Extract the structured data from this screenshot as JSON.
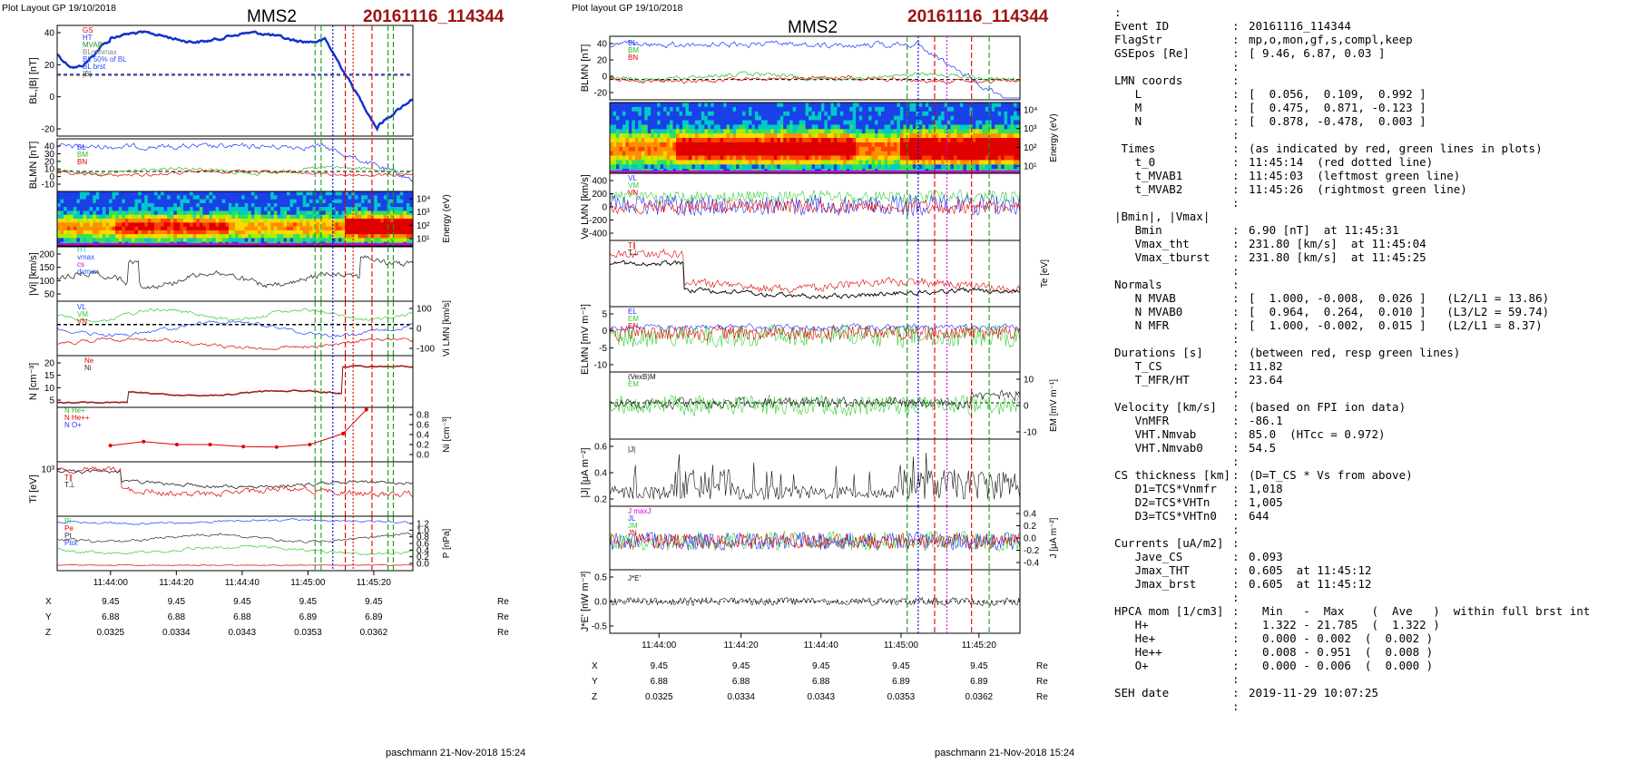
{
  "left_page": {
    "header": "Plot Layout GP 19/10/2018",
    "spacecraft": "MMS2",
    "event_id": "20161116_114344",
    "footer": "paschmann 21-Nov-2018 15:24",
    "time_labels": [
      "11:44:00",
      "11:44:20",
      "11:44:40",
      "11:45:00",
      "11:45:20"
    ],
    "orbit": {
      "x_label": "X",
      "y_label": "Y",
      "z_label": "Z",
      "unit": "Re",
      "x": [
        "9.45",
        "9.45",
        "9.45",
        "9.45",
        "9.45"
      ],
      "y": [
        "6.88",
        "6.88",
        "6.88",
        "6.89",
        "6.89"
      ],
      "z": [
        "0.0325",
        "0.0334",
        "0.0343",
        "0.0353",
        "0.0362"
      ]
    },
    "panels": [
      {
        "id": "bl",
        "ylabel": "BL,|B| [nT]",
        "ticks": [
          "40",
          "20",
          "0",
          "-20"
        ],
        "legend": [
          "GS",
          "HT",
          "MVAB",
          "BLminmax",
          "BL 50% of BL",
          "BL brst",
          "|B|"
        ]
      },
      {
        "id": "blmn",
        "ylabel": "BLMN [nT]",
        "ticks": [
          "40",
          "30",
          "20",
          "10",
          "0",
          "-10"
        ],
        "legend": [
          "BL",
          "BM",
          "BN"
        ]
      },
      {
        "id": "spec",
        "ylabel_right": "Energy (eV)",
        "ticks": [
          "10⁴",
          "10³",
          "10²",
          "10¹"
        ]
      },
      {
        "id": "vi",
        "ylabel": "|Vi| [km/s]",
        "ticks": [
          "200",
          "150",
          "100",
          "50"
        ],
        "legend": [
          "HT",
          "vmax",
          "cs",
          "dvmax"
        ]
      },
      {
        "id": "vilmn",
        "ylabel_right": "Vi LMN [km/s]",
        "ticks": [
          "100",
          "0",
          "-100"
        ],
        "legend": [
          "VL",
          "VM",
          "VN"
        ]
      },
      {
        "id": "n",
        "ylabel": "N [cm⁻³]",
        "ticks": [
          "20",
          "15",
          "10",
          "5"
        ],
        "legend": [
          "Ne",
          "Ni"
        ]
      },
      {
        "id": "ni",
        "ylabel_right": "Ni [cm⁻³]",
        "ticks": [
          "0.8",
          "0.6",
          "0.4",
          "0.2",
          "0.0"
        ],
        "legend": [
          "N He+",
          "N He++",
          "N O+"
        ]
      },
      {
        "id": "ti",
        "ylabel": "Ti [eV]",
        "ticks": [
          "10³"
        ],
        "legend": [
          "T∥",
          "T⊥"
        ]
      },
      {
        "id": "p",
        "ylabel_right": "P [nPa]",
        "ticks": [
          "1.2",
          "1.0",
          "0.8",
          "0.6",
          "0.4",
          "0.2",
          "0.0"
        ],
        "legend": [
          "Pi",
          "Pe",
          "Pt",
          "Ptot"
        ]
      }
    ]
  },
  "right_page": {
    "header": "Plot layout GP 19/10/2018",
    "spacecraft": "MMS2",
    "event_id": "20161116_114344",
    "footer": "paschmann 21-Nov-2018 15:24",
    "time_labels": [
      "11:44:00",
      "11:44:20",
      "11:44:40",
      "11:45:00",
      "11:45:20"
    ],
    "orbit": {
      "x_label": "X",
      "y_label": "Y",
      "z_label": "Z",
      "unit": "Re",
      "x": [
        "9.45",
        "9.45",
        "9.45",
        "9.45",
        "9.45"
      ],
      "y": [
        "6.88",
        "6.88",
        "6.88",
        "6.89",
        "6.89"
      ],
      "z": [
        "0.0325",
        "0.0334",
        "0.0343",
        "0.0353",
        "0.0362"
      ]
    },
    "panels": [
      {
        "id": "blmn",
        "ylabel": "BLMN [nT]",
        "ticks": [
          "40",
          "20",
          "0",
          "-20"
        ],
        "legend": [
          "BL",
          "BM",
          "BN"
        ]
      },
      {
        "id": "spec",
        "ylabel_right": "Energy (eV)",
        "ticks": [
          "10⁴",
          "10³",
          "10²",
          "10¹"
        ]
      },
      {
        "id": "ve",
        "ylabel": "Ve LMN [km/s]",
        "ticks": [
          "400",
          "200",
          "0",
          "-200",
          "-400"
        ],
        "legend": [
          "VL",
          "VM",
          "VN"
        ]
      },
      {
        "id": "te",
        "ylabel_right": "Te [eV]",
        "ticks": [],
        "legend": [
          "T∥",
          "T⊥"
        ]
      },
      {
        "id": "e",
        "ylabel": "ELMN [mV m⁻¹]",
        "ticks": [
          "5",
          "0",
          "-5",
          "-10"
        ],
        "legend": [
          "EL",
          "EM",
          "EN"
        ]
      },
      {
        "id": "em",
        "ylabel_right": "EM [mV m⁻¹]",
        "ticks": [
          "10",
          "0",
          "-10"
        ],
        "legend": [
          "(VexB)M",
          "EM"
        ]
      },
      {
        "id": "j",
        "ylabel": "|J| [μA m⁻²]",
        "ticks": [
          "0.6",
          "0.4",
          "0.2"
        ],
        "legend": [
          "|J|"
        ]
      },
      {
        "id": "jlmn",
        "ylabel_right": "J [μA m⁻²]",
        "ticks": [
          "0.4",
          "0.2",
          "0.0",
          "-0.2",
          "-0.4"
        ],
        "legend": [
          "J maxJ",
          "JL",
          "JM",
          "JN"
        ]
      },
      {
        "id": "je",
        "ylabel": "J*E' [nW m⁻³]",
        "ticks": [
          "0.5",
          "0.0",
          "-0.5"
        ],
        "legend": [
          "J*E'"
        ]
      }
    ]
  },
  "summary": {
    "lines": [
      {
        "k": ":",
        "c": "",
        "v": ""
      },
      {
        "k": "Event ID",
        "c": ":",
        "v": "20161116_114344"
      },
      {
        "k": "FlagStr",
        "c": ":",
        "v": "mp,o,mon,gf,s,compl,keep"
      },
      {
        "k": "GSEpos [Re]",
        "c": ":",
        "v": "[ 9.46, 6.87, 0.03 ]"
      },
      {
        "k": "",
        "c": ":",
        "v": ""
      },
      {
        "k": "LMN coords",
        "c": ":",
        "v": ""
      },
      {
        "k": "   L",
        "c": ":",
        "v": "[  0.056,  0.109,  0.992 ]"
      },
      {
        "k": "   M",
        "c": ":",
        "v": "[  0.475,  0.871, -0.123 ]"
      },
      {
        "k": "   N",
        "c": ":",
        "v": "[  0.878, -0.478,  0.003 ]"
      },
      {
        "k": "",
        "c": ":",
        "v": ""
      },
      {
        "k": " Times",
        "c": ":",
        "v": "(as indicated by red, green lines in plots)"
      },
      {
        "k": "   t_0",
        "c": ":",
        "v": "11:45:14  (red dotted line)"
      },
      {
        "k": "   t_MVAB1",
        "c": ":",
        "v": "11:45:03  (leftmost green line)"
      },
      {
        "k": "   t_MVAB2",
        "c": ":",
        "v": "11:45:26  (rightmost green line)"
      },
      {
        "k": "",
        "c": ":",
        "v": ""
      },
      {
        "k": "|Bmin|, |Vmax|",
        "c": "",
        "v": ""
      },
      {
        "k": "   Bmin",
        "c": ":",
        "v": "6.90 [nT]  at 11:45:31"
      },
      {
        "k": "   Vmax_tht",
        "c": ":",
        "v": "231.80 [km/s]  at 11:45:04"
      },
      {
        "k": "   Vmax_tburst",
        "c": ":",
        "v": "231.80 [km/s]  at 11:45:25"
      },
      {
        "k": "",
        "c": ":",
        "v": ""
      },
      {
        "k": "Normals",
        "c": ":",
        "v": ""
      },
      {
        "k": "   N MVAB",
        "c": ":",
        "v": "[  1.000, -0.008,  0.026 ]   (L2/L1 = 13.86)"
      },
      {
        "k": "   N MVAB0",
        "c": ":",
        "v": "[  0.964,  0.264,  0.010 ]   (L3/L2 = 59.74)"
      },
      {
        "k": "   N MFR",
        "c": ":",
        "v": "[  1.000, -0.002,  0.015 ]   (L2/L1 = 8.37)"
      },
      {
        "k": "",
        "c": ":",
        "v": ""
      },
      {
        "k": "Durations [s]",
        "c": ":",
        "v": "(between red, resp green lines)"
      },
      {
        "k": "   T_CS",
        "c": ":",
        "v": "11.82"
      },
      {
        "k": "   T_MFR/HT",
        "c": ":",
        "v": "23.64"
      },
      {
        "k": "",
        "c": ":",
        "v": ""
      },
      {
        "k": "Velocity [km/s]",
        "c": ":",
        "v": "(based on FPI ion data)"
      },
      {
        "k": "   VnMFR",
        "c": ":",
        "v": "-86.1"
      },
      {
        "k": "   VHT.Nmvab",
        "c": ":",
        "v": "85.0  (HTcc = 0.972)"
      },
      {
        "k": "   VHT.Nmvab0",
        "c": ":",
        "v": "54.5"
      },
      {
        "k": "",
        "c": ":",
        "v": ""
      },
      {
        "k": "CS thickness [km]",
        "c": ":",
        "v": "(D=T_CS * Vs from above)"
      },
      {
        "k": "   D1=TCS*Vnmfr",
        "c": ":",
        "v": "1,018"
      },
      {
        "k": "   D2=TCS*VHTn",
        "c": ":",
        "v": "1,005"
      },
      {
        "k": "   D3=TCS*VHTn0",
        "c": ":",
        "v": "644"
      },
      {
        "k": "",
        "c": ":",
        "v": ""
      },
      {
        "k": "Currents [uA/m2]",
        "c": ":",
        "v": ""
      },
      {
        "k": "   Jave_CS",
        "c": ":",
        "v": "0.093"
      },
      {
        "k": "   Jmax_THT",
        "c": ":",
        "v": "0.605  at 11:45:12"
      },
      {
        "k": "   Jmax_brst",
        "c": ":",
        "v": "0.605  at 11:45:12"
      },
      {
        "k": "",
        "c": ":",
        "v": ""
      },
      {
        "k": "HPCA mom [1/cm3]",
        "c": ":",
        "v": "  Min   -  Max    (  Ave   )  within full brst int"
      },
      {
        "k": "   H+",
        "c": ":",
        "v": "  1.322 - 21.785  (  1.322 )"
      },
      {
        "k": "   He+",
        "c": ":",
        "v": "  0.000 - 0.002  (  0.002 )"
      },
      {
        "k": "   He++",
        "c": ":",
        "v": "  0.008 - 0.951  (  0.008 )"
      },
      {
        "k": "   O+",
        "c": ":",
        "v": "  0.000 - 0.006  (  0.000 )"
      },
      {
        "k": "",
        "c": ":",
        "v": ""
      },
      {
        "k": "SEH date",
        "c": ":",
        "v": "2019-11-29 10:07:25"
      },
      {
        "k": "",
        "c": ":",
        "v": ""
      }
    ]
  },
  "chart_data": [
    {
      "type": "line",
      "title": "MMS2",
      "panels": [
        "BL,|B|",
        "BLMN",
        "ion spectrogram",
        "|Vi|",
        "Vi LMN",
        "N",
        "Ni HPCA",
        "Ti",
        "P"
      ],
      "x_ticks": [
        "11:44:00",
        "11:44:20",
        "11:44:40",
        "11:45:00",
        "11:45:20"
      ],
      "markers": {
        "t_0": "11:45:14",
        "t_MVAB1": "11:45:03",
        "t_MVAB2": "11:45:26"
      },
      "ni_hpca_he_pp": {
        "x": [
          "11:44:00",
          "11:44:10",
          "11:44:20",
          "11:44:30",
          "11:44:40",
          "11:44:50",
          "11:45:00",
          "11:45:10",
          "11:45:17"
        ],
        "values": [
          0.18,
          0.26,
          0.2,
          0.2,
          0.16,
          0.15,
          0.2,
          0.42,
          0.9
        ]
      }
    },
    {
      "type": "line",
      "title": "MMS2",
      "panels": [
        "BLMN",
        "electron spectrogram",
        "Ve LMN",
        "Te",
        "ELMN",
        "EM",
        "|J|",
        "J LMN",
        "J*E'"
      ],
      "x_ticks": [
        "11:44:00",
        "11:44:20",
        "11:44:40",
        "11:45:00",
        "11:45:20"
      ]
    }
  ]
}
